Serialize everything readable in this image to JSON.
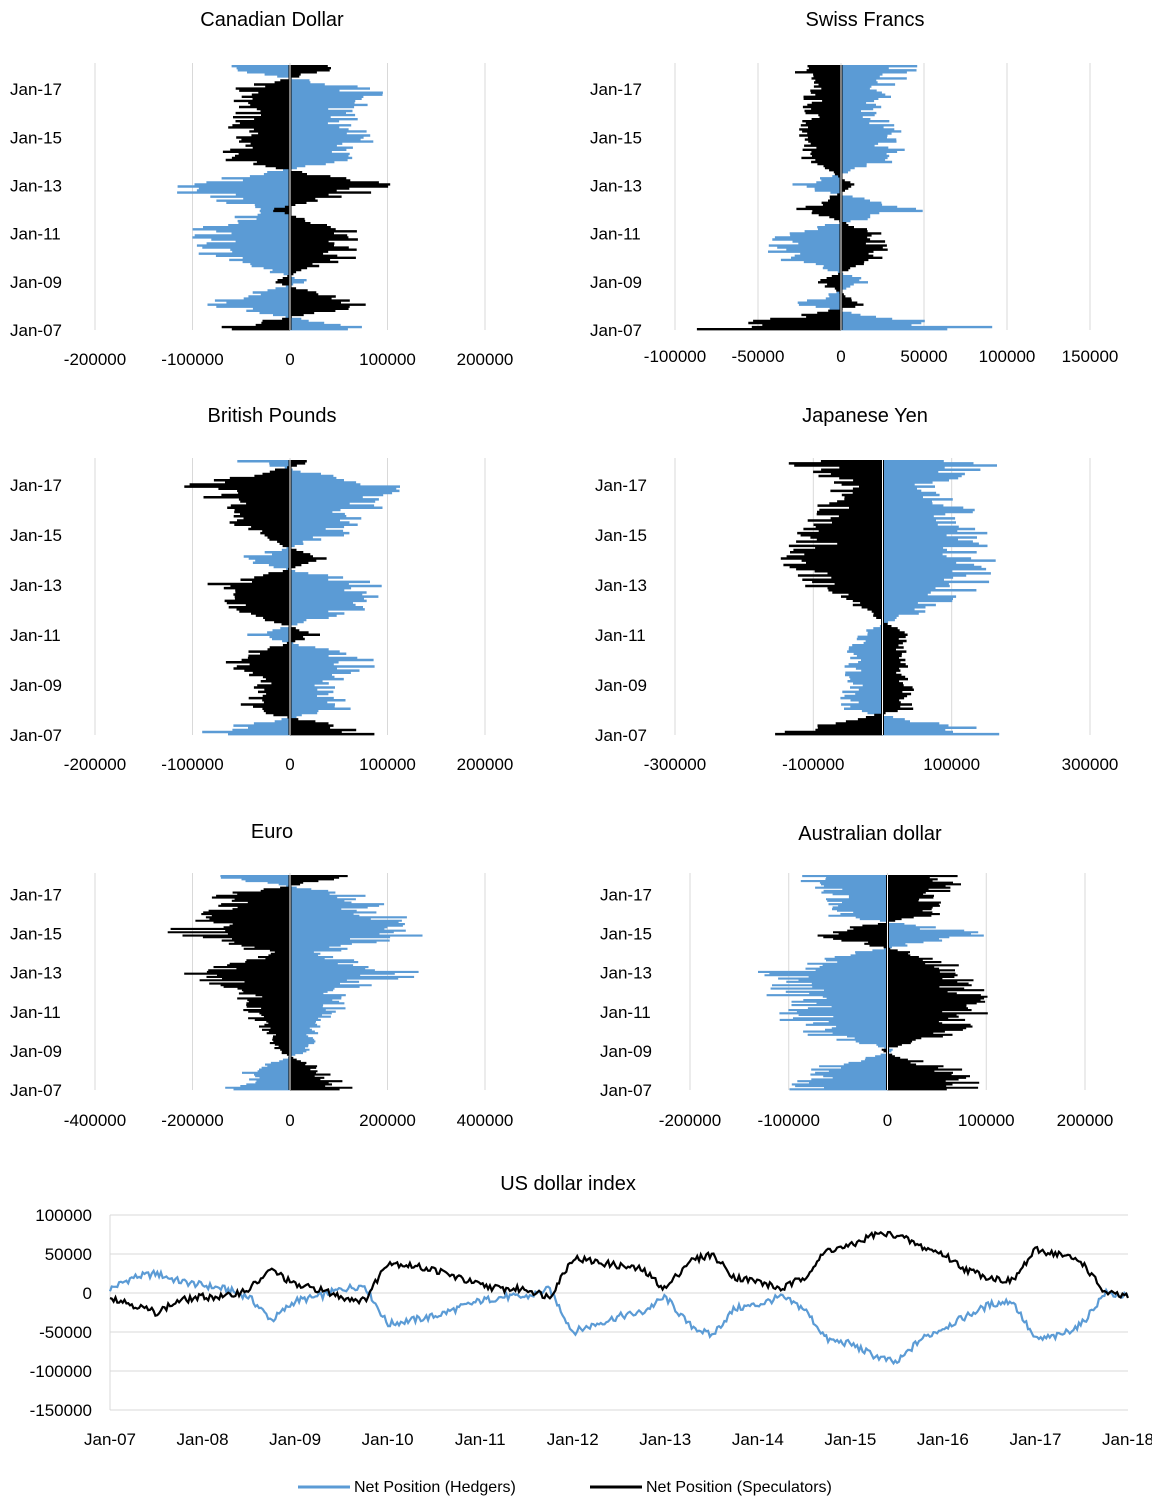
{
  "colors": {
    "hedgers": "#5b9bd5",
    "speculators": "#000000",
    "grid": "#d9d9d9"
  },
  "legend": {
    "hedgers": "Net Position (Hedgers)",
    "speculators": "Net Position (Speculators)"
  },
  "chart_data": [
    {
      "type": "bar",
      "orientation": "horizontal",
      "title": "Canadian Dollar",
      "y_ticks": [
        "Jan-07",
        "Jan-09",
        "Jan-11",
        "Jan-13",
        "Jan-15",
        "Jan-17"
      ],
      "x_ticks": [
        "-200000",
        "-100000",
        "0",
        "100000",
        "200000"
      ],
      "xlim": [
        -200000,
        200000
      ],
      "series": [
        {
          "name": "Net Position (Hedgers)",
          "x": [
            "Jan-07",
            "Jan-08",
            "Jan-09",
            "Jan-10",
            "Jan-11",
            "Jan-12",
            "Jan-13",
            "Jan-14",
            "Jan-15",
            "Jan-16",
            "Jan-17",
            "Jan-18"
          ],
          "values": [
            90000,
            -95000,
            20000,
            -80000,
            -100000,
            -30000,
            -130000,
            60000,
            80000,
            60000,
            90000,
            -90000
          ]
        },
        {
          "name": "Net Position (Speculators)",
          "x": [
            "Jan-07",
            "Jan-08",
            "Jan-09",
            "Jan-10",
            "Jan-11",
            "Jan-12",
            "Jan-13",
            "Jan-14",
            "Jan-15",
            "Jan-16",
            "Jan-17",
            "Jan-18"
          ],
          "values": [
            -80000,
            80000,
            -20000,
            60000,
            70000,
            -20000,
            110000,
            -60000,
            -60000,
            -50000,
            -60000,
            60000
          ]
        }
      ]
    },
    {
      "type": "bar",
      "orientation": "horizontal",
      "title": "Swiss Francs",
      "y_ticks": [
        "Jan-07",
        "Jan-09",
        "Jan-11",
        "Jan-13",
        "Jan-15",
        "Jan-17"
      ],
      "x_ticks": [
        "-100000",
        "-50000",
        "0",
        "50000",
        "100000",
        "150000"
      ],
      "xlim": [
        -100000,
        150000
      ],
      "series": [
        {
          "name": "Net Position (Hedgers)",
          "x": [
            "Jan-07",
            "Jan-08",
            "Jan-09",
            "Jan-10",
            "Jan-11",
            "Jan-12",
            "Jan-13",
            "Jan-14",
            "Jan-15",
            "Jan-16",
            "Jan-17",
            "Jan-18"
          ],
          "values": [
            90000,
            -30000,
            20000,
            -40000,
            -40000,
            50000,
            -30000,
            30000,
            40000,
            20000,
            30000,
            45000
          ]
        },
        {
          "name": "Net Position (Speculators)",
          "x": [
            "Jan-07",
            "Jan-08",
            "Jan-09",
            "Jan-10",
            "Jan-11",
            "Jan-12",
            "Jan-13",
            "Jan-14",
            "Jan-15",
            "Jan-16",
            "Jan-17",
            "Jan-18"
          ],
          "values": [
            -80000,
            15000,
            -15000,
            25000,
            25000,
            -25000,
            10000,
            -20000,
            -25000,
            -20000,
            -20000,
            -30000
          ]
        }
      ]
    },
    {
      "type": "bar",
      "orientation": "horizontal",
      "title": "British Pounds",
      "y_ticks": [
        "Jan-07",
        "Jan-09",
        "Jan-11",
        "Jan-13",
        "Jan-15",
        "Jan-17"
      ],
      "x_ticks": [
        "-200000",
        "-100000",
        "0",
        "100000",
        "200000"
      ],
      "xlim": [
        -200000,
        200000
      ],
      "series": [
        {
          "name": "Net Position (Hedgers)",
          "x": [
            "Jan-07",
            "Jan-08",
            "Jan-09",
            "Jan-10",
            "Jan-11",
            "Jan-12",
            "Jan-13",
            "Jan-14",
            "Jan-15",
            "Jan-16",
            "Jan-17",
            "Jan-18"
          ],
          "values": [
            -110000,
            60000,
            40000,
            90000,
            -40000,
            70000,
            100000,
            -60000,
            50000,
            80000,
            110000,
            -50000
          ]
        },
        {
          "name": "Net Position (Speculators)",
          "x": [
            "Jan-07",
            "Jan-08",
            "Jan-09",
            "Jan-10",
            "Jan-11",
            "Jan-12",
            "Jan-13",
            "Jan-14",
            "Jan-15",
            "Jan-16",
            "Jan-17",
            "Jan-18"
          ],
          "values": [
            100000,
            -50000,
            -30000,
            -70000,
            30000,
            -60000,
            -80000,
            40000,
            -40000,
            -70000,
            -100000,
            30000
          ]
        }
      ]
    },
    {
      "type": "bar",
      "orientation": "horizontal",
      "title": "Japanese Yen",
      "y_ticks": [
        "Jan-07",
        "Jan-09",
        "Jan-11",
        "Jan-13",
        "Jan-15",
        "Jan-17"
      ],
      "x_ticks": [
        "-300000",
        "-100000",
        "100000",
        "300000"
      ],
      "xlim": [
        -300000,
        300000
      ],
      "series": [
        {
          "name": "Net Position (Hedgers)",
          "x": [
            "Jan-07",
            "Jan-08",
            "Jan-09",
            "Jan-10",
            "Jan-11",
            "Jan-12",
            "Jan-13",
            "Jan-14",
            "Jan-15",
            "Jan-16",
            "Jan-17",
            "Jan-18"
          ],
          "values": [
            180000,
            -60000,
            -50000,
            -50000,
            -40000,
            60000,
            140000,
            160000,
            140000,
            120000,
            70000,
            160000
          ]
        },
        {
          "name": "Net Position (Speculators)",
          "x": [
            "Jan-07",
            "Jan-08",
            "Jan-09",
            "Jan-10",
            "Jan-11",
            "Jan-12",
            "Jan-13",
            "Jan-14",
            "Jan-15",
            "Jan-16",
            "Jan-17",
            "Jan-18"
          ],
          "values": [
            -180000,
            40000,
            40000,
            30000,
            40000,
            -30000,
            -100000,
            -130000,
            -110000,
            -90000,
            -60000,
            -130000
          ]
        }
      ]
    },
    {
      "type": "bar",
      "orientation": "horizontal",
      "title": "Euro",
      "y_ticks": [
        "Jan-07",
        "Jan-09",
        "Jan-11",
        "Jan-13",
        "Jan-15",
        "Jan-17"
      ],
      "x_ticks": [
        "-400000",
        "-200000",
        "0",
        "200000",
        "400000"
      ],
      "xlim": [
        -400000,
        400000
      ],
      "series": [
        {
          "name": "Net Position (Hedgers)",
          "x": [
            "Jan-07",
            "Jan-08",
            "Jan-09",
            "Jan-10",
            "Jan-11",
            "Jan-12",
            "Jan-13",
            "Jan-14",
            "Jan-15",
            "Jan-16",
            "Jan-17",
            "Jan-18"
          ],
          "values": [
            -130000,
            -80000,
            40000,
            60000,
            100000,
            120000,
            260000,
            60000,
            270000,
            200000,
            160000,
            -190000
          ]
        },
        {
          "name": "Net Position (Speculators)",
          "x": [
            "Jan-07",
            "Jan-08",
            "Jan-09",
            "Jan-10",
            "Jan-11",
            "Jan-12",
            "Jan-13",
            "Jan-14",
            "Jan-15",
            "Jan-16",
            "Jan-17",
            "Jan-18"
          ],
          "values": [
            120000,
            70000,
            -30000,
            -50000,
            -90000,
            -100000,
            -220000,
            -40000,
            -230000,
            -170000,
            -150000,
            150000
          ]
        }
      ]
    },
    {
      "type": "bar",
      "orientation": "horizontal",
      "title": "Australian dollar",
      "y_ticks": [
        "Jan-07",
        "Jan-09",
        "Jan-11",
        "Jan-13",
        "Jan-15",
        "Jan-17"
      ],
      "x_ticks": [
        "-200000",
        "-100000",
        "0",
        "100000",
        "200000"
      ],
      "xlim": [
        -200000,
        200000
      ],
      "series": [
        {
          "name": "Net Position (Hedgers)",
          "x": [
            "Jan-07",
            "Jan-08",
            "Jan-09",
            "Jan-10",
            "Jan-11",
            "Jan-12",
            "Jan-13",
            "Jan-14",
            "Jan-15",
            "Jan-16",
            "Jan-17",
            "Jan-18"
          ],
          "values": [
            -100000,
            -80000,
            10000,
            -90000,
            -100000,
            -110000,
            -120000,
            -40000,
            100000,
            -60000,
            -60000,
            -90000
          ]
        },
        {
          "name": "Net Position (Speculators)",
          "x": [
            "Jan-07",
            "Jan-08",
            "Jan-09",
            "Jan-10",
            "Jan-11",
            "Jan-12",
            "Jan-13",
            "Jan-14",
            "Jan-15",
            "Jan-16",
            "Jan-17",
            "Jan-18"
          ],
          "values": [
            90000,
            70000,
            -10000,
            80000,
            90000,
            90000,
            100000,
            30000,
            -80000,
            50000,
            50000,
            80000
          ]
        }
      ]
    },
    {
      "type": "line",
      "title": "US dollar index",
      "x_ticks": [
        "Jan-07",
        "Jan-08",
        "Jan-09",
        "Jan-10",
        "Jan-11",
        "Jan-12",
        "Jan-13",
        "Jan-14",
        "Jan-15",
        "Jan-16",
        "Jan-17",
        "Jan-18"
      ],
      "y_ticks": [
        "100000",
        "50000",
        "0",
        "-50000",
        "-100000",
        "-150000"
      ],
      "ylim": [
        -150000,
        100000
      ],
      "legend_position": "bottom",
      "series": [
        {
          "name": "Net Position (Hedgers)",
          "x": [
            2007.0,
            2007.25,
            2007.5,
            2007.75,
            2008.0,
            2008.25,
            2008.5,
            2008.75,
            2009.0,
            2009.25,
            2009.5,
            2009.75,
            2010.0,
            2010.25,
            2010.5,
            2010.75,
            2011.0,
            2011.25,
            2011.5,
            2011.75,
            2012.0,
            2012.25,
            2012.5,
            2012.75,
            2013.0,
            2013.25,
            2013.5,
            2013.75,
            2014.0,
            2014.25,
            2014.5,
            2014.75,
            2015.0,
            2015.25,
            2015.5,
            2015.75,
            2016.0,
            2016.25,
            2016.5,
            2016.75,
            2017.0,
            2017.25,
            2017.5,
            2017.75,
            2018.0
          ],
          "values": [
            5000,
            20000,
            25000,
            15000,
            10000,
            5000,
            -5000,
            -35000,
            -10000,
            -5000,
            5000,
            10000,
            -40000,
            -35000,
            -30000,
            -20000,
            -10000,
            -5000,
            -5000,
            5000,
            -50000,
            -40000,
            -30000,
            -25000,
            -5000,
            -40000,
            -55000,
            -20000,
            -15000,
            -5000,
            -20000,
            -60000,
            -65000,
            -80000,
            -90000,
            -60000,
            -45000,
            -30000,
            -15000,
            -10000,
            -60000,
            -55000,
            -40000,
            0,
            -5000
          ]
        },
        {
          "name": "Net Position (Speculators)",
          "x": [
            2007.0,
            2007.25,
            2007.5,
            2007.75,
            2008.0,
            2008.25,
            2008.5,
            2008.75,
            2009.0,
            2009.25,
            2009.5,
            2009.75,
            2010.0,
            2010.25,
            2010.5,
            2010.75,
            2011.0,
            2011.25,
            2011.5,
            2011.75,
            2012.0,
            2012.25,
            2012.5,
            2012.75,
            2013.0,
            2013.25,
            2013.5,
            2013.75,
            2014.0,
            2014.25,
            2014.5,
            2014.75,
            2015.0,
            2015.25,
            2015.5,
            2015.75,
            2016.0,
            2016.25,
            2016.5,
            2016.75,
            2017.0,
            2017.25,
            2017.5,
            2017.75,
            2018.0
          ],
          "values": [
            -5000,
            -15000,
            -25000,
            -10000,
            -5000,
            -5000,
            5000,
            30000,
            10000,
            5000,
            -5000,
            -10000,
            40000,
            35000,
            30000,
            20000,
            10000,
            5000,
            5000,
            -5000,
            45000,
            40000,
            35000,
            30000,
            5000,
            40000,
            50000,
            20000,
            15000,
            5000,
            20000,
            55000,
            60000,
            75000,
            75000,
            60000,
            50000,
            30000,
            20000,
            15000,
            55000,
            50000,
            40000,
            0,
            -5000
          ]
        }
      ]
    }
  ]
}
